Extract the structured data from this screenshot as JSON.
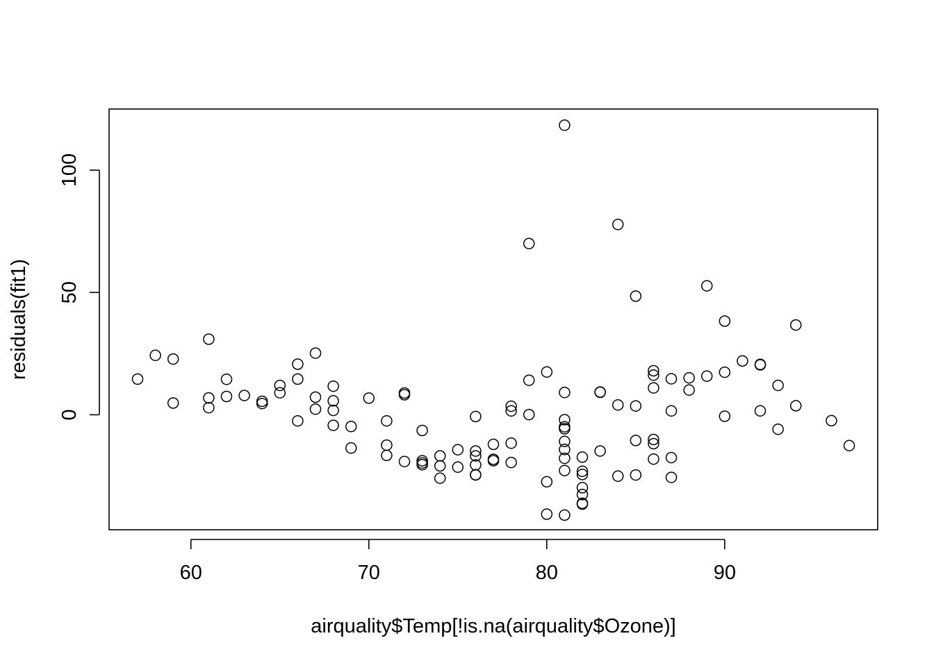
{
  "chart_data": {
    "type": "scatter",
    "title": "",
    "xlabel": "airquality$Temp[!is.na(airquality$Ozone)]",
    "ylabel": "residuals(fit1)",
    "xlim": [
      55.4,
      98.6
    ],
    "ylim": [
      -47,
      125
    ],
    "xticks": [
      60,
      70,
      80,
      90
    ],
    "yticks": [
      0,
      50,
      100
    ],
    "xtick_labels": [
      "60",
      "70",
      "80",
      "90"
    ],
    "ytick_labels": [
      "0",
      "50",
      "100"
    ],
    "grid": false,
    "marker": "open-circle",
    "colors": {
      "points": "#000000",
      "axes": "#000000",
      "background": "#ffffff"
    },
    "points": [
      [
        57,
        14.6
      ],
      [
        58,
        24.3
      ],
      [
        59,
        22.8
      ],
      [
        59,
        4.8
      ],
      [
        61,
        30.9
      ],
      [
        61,
        6.9
      ],
      [
        61,
        2.9
      ],
      [
        62,
        14.5
      ],
      [
        62,
        7.5
      ],
      [
        63,
        7.9
      ],
      [
        64,
        5.5
      ],
      [
        64,
        4.6
      ],
      [
        65,
        12.0
      ],
      [
        65,
        9.0
      ],
      [
        66,
        20.7
      ],
      [
        66,
        14.6
      ],
      [
        66,
        -2.5
      ],
      [
        67,
        25.2
      ],
      [
        67,
        7.2
      ],
      [
        67,
        2.3
      ],
      [
        68,
        11.7
      ],
      [
        68,
        5.7
      ],
      [
        68,
        1.8
      ],
      [
        68,
        -4.3
      ],
      [
        69,
        -4.8
      ],
      [
        69,
        -13.6
      ],
      [
        70,
        6.8
      ],
      [
        71,
        -2.5
      ],
      [
        71,
        -12.4
      ],
      [
        71,
        -16.6
      ],
      [
        72,
        8.9
      ],
      [
        72,
        8.2
      ],
      [
        72,
        -19.1
      ],
      [
        73,
        -6.4
      ],
      [
        73,
        -18.8
      ],
      [
        73,
        -19.7
      ],
      [
        73,
        -20.4
      ],
      [
        74,
        -16.8
      ],
      [
        74,
        -20.9
      ],
      [
        74,
        -25.9
      ],
      [
        75,
        -14.3
      ],
      [
        75,
        -21.4
      ],
      [
        76,
        -0.7
      ],
      [
        76,
        -14.8
      ],
      [
        76,
        -16.8
      ],
      [
        76,
        -20.5
      ],
      [
        76,
        -24.5
      ],
      [
        76,
        -24.6
      ],
      [
        77,
        -12.1
      ],
      [
        77,
        -18.2
      ],
      [
        77,
        -18.8
      ],
      [
        78,
        3.5
      ],
      [
        78,
        1.6
      ],
      [
        78,
        -11.6
      ],
      [
        78,
        -19.5
      ],
      [
        79,
        70.0
      ],
      [
        79,
        14.1
      ],
      [
        79,
        0.1
      ],
      [
        80,
        17.5
      ],
      [
        80,
        -27.4
      ],
      [
        80,
        -40.6
      ],
      [
        81,
        118.4
      ],
      [
        81,
        9.1
      ],
      [
        81,
        -2.0
      ],
      [
        81,
        -4.9
      ],
      [
        81,
        -5.7
      ],
      [
        81,
        -10.9
      ],
      [
        81,
        -14.2
      ],
      [
        81,
        -17.8
      ],
      [
        81,
        -22.8
      ],
      [
        81,
        -41.0
      ],
      [
        82,
        -17.3
      ],
      [
        82,
        -23.1
      ],
      [
        82,
        -24.4
      ],
      [
        82,
        -29.8
      ],
      [
        82,
        -32.6
      ],
      [
        82,
        -36.2
      ],
      [
        82,
        -36.5
      ],
      [
        83,
        9.3
      ],
      [
        83,
        9.2
      ],
      [
        83,
        -14.8
      ],
      [
        84,
        77.8
      ],
      [
        84,
        4.0
      ],
      [
        84,
        -25.1
      ],
      [
        85,
        48.5
      ],
      [
        85,
        3.6
      ],
      [
        85,
        -10.5
      ],
      [
        85,
        -24.6
      ],
      [
        86,
        18.0
      ],
      [
        86,
        16.2
      ],
      [
        86,
        11.0
      ],
      [
        86,
        -10.1
      ],
      [
        86,
        -11.8
      ],
      [
        86,
        -18.1
      ],
      [
        87,
        14.7
      ],
      [
        87,
        1.6
      ],
      [
        87,
        -17.5
      ],
      [
        87,
        -25.6
      ],
      [
        88,
        15.1
      ],
      [
        88,
        10.1
      ],
      [
        89,
        52.7
      ],
      [
        89,
        15.8
      ],
      [
        90,
        38.3
      ],
      [
        90,
        17.4
      ],
      [
        90,
        -0.6
      ],
      [
        91,
        22.0
      ],
      [
        92,
        20.6
      ],
      [
        92,
        20.4
      ],
      [
        92,
        1.6
      ],
      [
        93,
        12.0
      ],
      [
        93,
        -5.9
      ],
      [
        94,
        36.7
      ],
      [
        94,
        3.7
      ],
      [
        96,
        -2.4
      ],
      [
        97,
        -12.6
      ]
    ]
  }
}
